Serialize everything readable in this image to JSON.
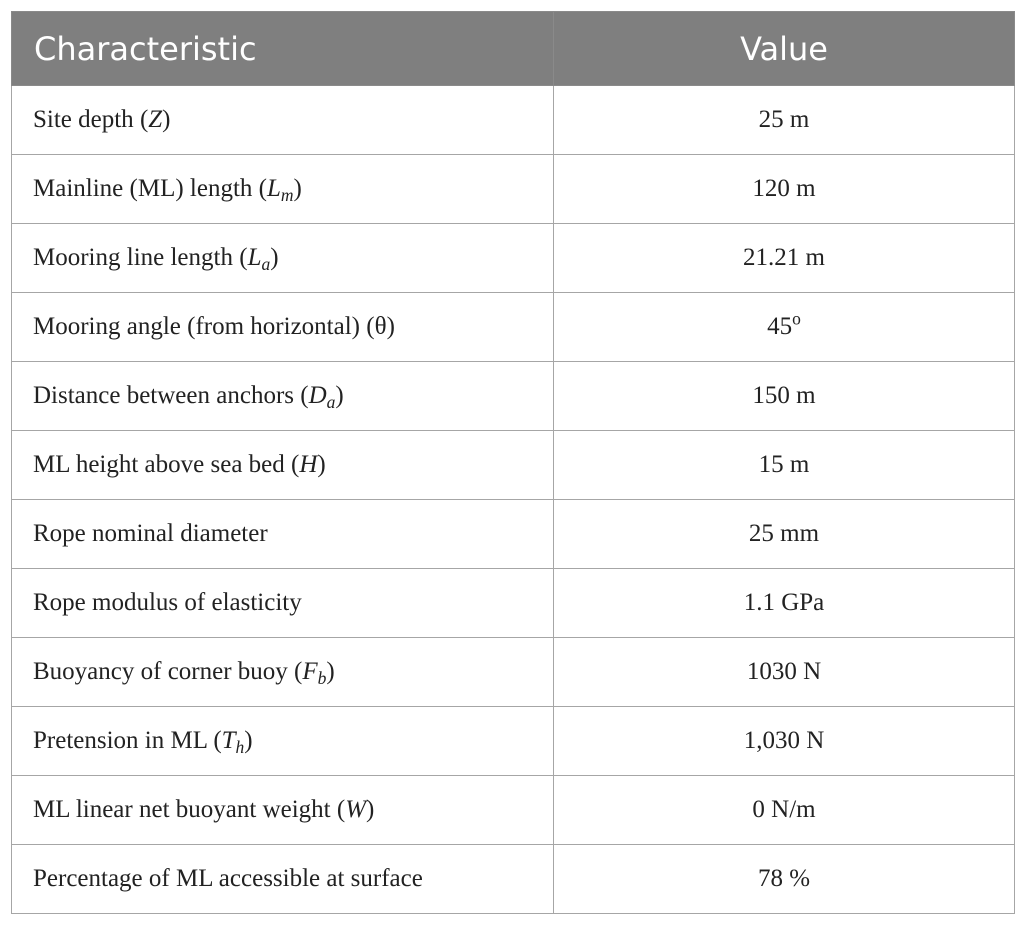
{
  "table": {
    "headers": [
      "Characteristic",
      "Value"
    ],
    "rows": [
      {
        "label": "Site depth",
        "symbol": "Z",
        "subscript": "",
        "value": "25 m"
      },
      {
        "label": "Mainline (ML) length",
        "symbol": "L",
        "subscript": "m",
        "value": "120 m"
      },
      {
        "label": "Mooring line length",
        "symbol": "L",
        "subscript": "a",
        "value": "21.21 m"
      },
      {
        "label": "Mooring angle (from horizontal)",
        "symbol": "θ",
        "subscript": "",
        "value": "45",
        "value_superscript": "o"
      },
      {
        "label": "Distance between anchors",
        "symbol": "D",
        "subscript": "a",
        "value": "150 m"
      },
      {
        "label": "ML height above sea bed",
        "symbol": "H",
        "subscript": "",
        "value": "15 m"
      },
      {
        "label": "Rope nominal diameter",
        "symbol": "",
        "subscript": "",
        "value": "25 mm"
      },
      {
        "label": "Rope modulus of elasticity",
        "symbol": "",
        "subscript": "",
        "value": "1.1 GPa"
      },
      {
        "label": "Buoyancy of corner buoy",
        "symbol": "F",
        "subscript": "b",
        "value": "1030 N"
      },
      {
        "label": "Pretension in ML",
        "symbol": "T",
        "subscript": "h",
        "value": "1,030 N"
      },
      {
        "label": "ML linear net buoyant weight",
        "symbol": "W",
        "subscript": "",
        "value": "0 N/m"
      },
      {
        "label": "Percentage of ML accessible at surface",
        "symbol": "",
        "subscript": "",
        "value": "78 %"
      }
    ]
  }
}
